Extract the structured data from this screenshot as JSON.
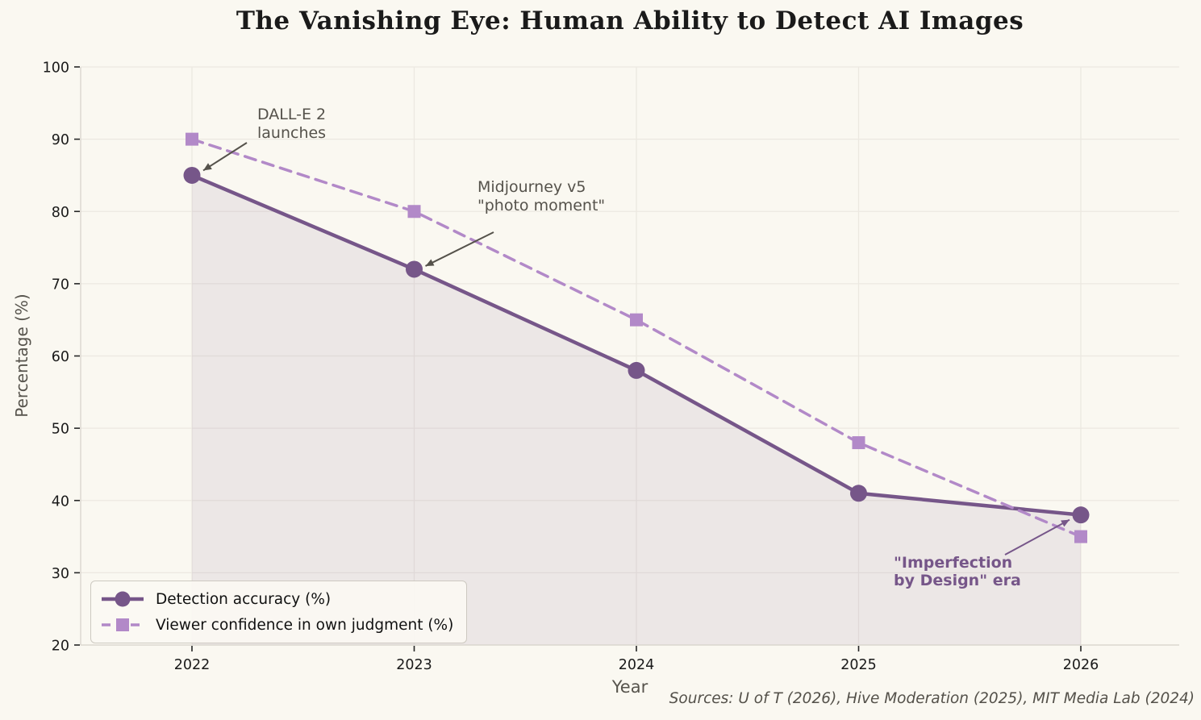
{
  "chart": {
    "title": "The Vanishing Eye: Human Ability to Detect AI Images",
    "xlabel": "Year",
    "ylabel": "Percentage (%)",
    "source_note": "Sources: U of T (2026), Hive Moderation (2025), MIT Media Lab (2024)"
  },
  "chart_data": {
    "type": "line",
    "title": "The Vanishing Eye: Human Ability to Detect AI Images",
    "xlabel": "Year",
    "ylabel": "Percentage (%)",
    "x": [
      2022,
      2023,
      2024,
      2025,
      2026
    ],
    "series": [
      {
        "name": "Detection accuracy (%)",
        "values": [
          85,
          72,
          58,
          41,
          38
        ],
        "color": "#765689",
        "line_style": "solid",
        "marker": "circle",
        "fill_under": true
      },
      {
        "name": "Viewer confidence in own judgment (%)",
        "values": [
          90,
          80,
          65,
          48,
          35
        ],
        "color": "#B289C8",
        "line_style": "dashed",
        "marker": "square",
        "fill_under": false
      }
    ],
    "ylim": [
      20,
      100
    ],
    "yticks": [
      20,
      30,
      40,
      50,
      60,
      70,
      80,
      90,
      100
    ],
    "grid": true,
    "legend_position": "lower left",
    "annotations": [
      {
        "text": "DALL-E 2\nlaunches",
        "target_x": 2022,
        "target_y": 85,
        "color": "#55524B"
      },
      {
        "text": "Midjourney v5\n\"photo moment\"",
        "target_x": 2023,
        "target_y": 72,
        "color": "#55524B"
      },
      {
        "text": "\"Imperfection\nby Design\" era",
        "target_x": 2026,
        "target_y": 38,
        "color": "#765689"
      }
    ],
    "source_note": "Sources: U of T (2026), Hive Moderation (2025), MIT Media Lab (2024)"
  },
  "colors": {
    "background": "#FAF8F1",
    "grid": "#ECE8E1",
    "spine": "#D8D4CC",
    "tick": "#262626",
    "tick_label": "#1A1A1A",
    "axis_label": "#57544D",
    "annotation_gray": "#55524B",
    "annotation_purple": "#765689",
    "fill_under": "rgba(118,86,137,0.10)"
  }
}
